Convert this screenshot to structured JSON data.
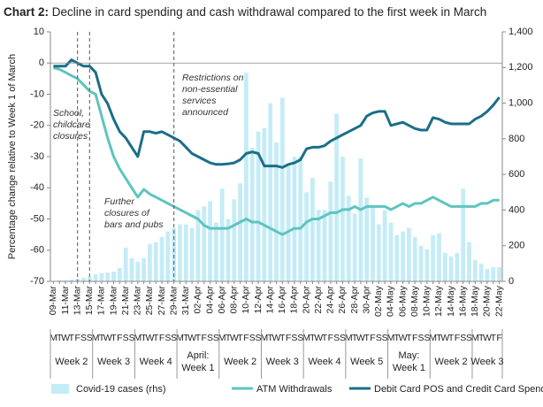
{
  "chart_data": {
    "type": "combo",
    "title_prefix": "Chart 2:",
    "title": "Decline in card spending and cash withdrawal compared to the first week in March",
    "ylabel": "Percentage change relative to Week 1 of March",
    "categories": [
      "09-Mar",
      null,
      "11-Mar",
      null,
      "13-Mar",
      null,
      "15-Mar",
      null,
      "17-Mar",
      null,
      "19-Mar",
      null,
      "21-Mar",
      null,
      "23-Mar",
      null,
      "25-Mar",
      null,
      "27-Mar",
      null,
      "29-Mar",
      null,
      "31-Mar",
      null,
      "02-Apr",
      null,
      "04-Apr",
      null,
      "06-Apr",
      null,
      "08-Apr",
      null,
      "10-Apr",
      null,
      "12-Apr",
      null,
      "14-Apr",
      null,
      "16-Apr",
      null,
      "18-Apr",
      null,
      "20-Apr",
      null,
      "22-Apr",
      null,
      "24-Apr",
      null,
      "26-Apr",
      null,
      "28-Apr",
      null,
      "30-Apr",
      null,
      "02-May",
      null,
      "04-May",
      null,
      "06-May",
      null,
      "08-May",
      null,
      "10-May",
      null,
      "12-May",
      null,
      "14-May",
      null,
      "16-May",
      null,
      "18-May",
      null,
      "20-May",
      null,
      "22-May"
    ],
    "weekdays": [
      "M",
      "T",
      "W",
      "T",
      "F",
      "S",
      "S",
      "M",
      "T",
      "W",
      "T",
      "F",
      "S",
      "S",
      "M",
      "T",
      "W",
      "T",
      "F",
      "S",
      "S",
      "M",
      "T",
      "W",
      "T",
      "F",
      "S",
      "S",
      "M",
      "T",
      "W",
      "T",
      "F",
      "S",
      "S",
      "M",
      "T",
      "W",
      "T",
      "F",
      "S",
      "S",
      "M",
      "T",
      "W",
      "T",
      "F",
      "S",
      "S",
      "M",
      "T",
      "W",
      "T",
      "F",
      "S",
      "S",
      "M",
      "T",
      "W",
      "T",
      "F",
      "S",
      "S",
      "M",
      "T",
      "W",
      "T",
      "F",
      "S",
      "S",
      "M",
      "T",
      "W",
      "T",
      "F"
    ],
    "week_groups": [
      [
        "Week 2"
      ],
      [
        "Week 3"
      ],
      [
        "Week 4"
      ],
      [
        "April:",
        "Week 1"
      ],
      [
        "Week 2"
      ],
      [
        "Week 3"
      ],
      [
        "Week 4"
      ],
      [
        "Week 5"
      ],
      [
        "May:",
        "Week 1"
      ],
      [
        "Week 2"
      ],
      [
        "Week 3"
      ]
    ],
    "ylim": [
      -70,
      10
    ],
    "yticks": [
      -70,
      -60,
      -50,
      -40,
      -30,
      -20,
      -10,
      0,
      10
    ],
    "y2lim": [
      0,
      1400
    ],
    "y2ticks": [
      0,
      200,
      400,
      600,
      800,
      {
        "value": 1000,
        "label": "1,000"
      },
      {
        "value": 1200,
        "label": "1,200"
      },
      {
        "value": 1400,
        "label": "1,400"
      }
    ],
    "series": [
      {
        "name": "Covid-19 cases (rhs)",
        "type": "bar",
        "axis": "y2",
        "color": "#c4ecf6",
        "values": [
          2,
          5,
          5,
          10,
          15,
          20,
          25,
          40,
          45,
          50,
          55,
          75,
          190,
          130,
          110,
          130,
          210,
          220,
          250,
          280,
          300,
          320,
          320,
          300,
          400,
          420,
          450,
          330,
          520,
          350,
          460,
          550,
          1170,
          750,
          840,
          860,
          1000,
          780,
          1030,
          650,
          700,
          700,
          500,
          580,
          400,
          400,
          560,
          940,
          700,
          480,
          380,
          690,
          470,
          420,
          320,
          400,
          330,
          260,
          280,
          300,
          250,
          200,
          180,
          260,
          270,
          160,
          140,
          160,
          520,
          220,
          120,
          100,
          70,
          80,
          80
        ]
      },
      {
        "name": "ATM Withdrawals",
        "type": "line",
        "color": "#5ec4bf",
        "values": [
          -1.5,
          -2,
          -3,
          -4,
          -5,
          -7,
          -9,
          -10,
          -17,
          -24,
          -30,
          -34,
          -37,
          -40,
          -43,
          -40.5,
          -42,
          -43,
          -44,
          -45,
          -46,
          -47,
          -48,
          -49,
          -50,
          -52,
          -53,
          -53,
          -53,
          -53,
          -52,
          -51,
          -50,
          -51,
          -51,
          -52,
          -53,
          -54,
          -55,
          -54,
          -53,
          -53,
          -51,
          -50,
          -50,
          -49,
          -48,
          -48,
          -47,
          -47,
          -46,
          -47,
          -46,
          -46,
          -46,
          -46,
          -47,
          -46,
          -45,
          -46,
          -45,
          -45,
          -44,
          -43,
          -44,
          -45,
          -46,
          -46,
          -46,
          -46,
          -46,
          -45,
          -45,
          -44,
          -44
        ]
      },
      {
        "name": "Debit Card POS and Credit Card Spending",
        "type": "line",
        "color": "#1b6e87",
        "values": [
          -1,
          -1,
          -1,
          1,
          0,
          -1,
          -1,
          -3,
          -10,
          -13,
          -18,
          -22,
          -24,
          -27,
          -30,
          -22,
          -22,
          -22.5,
          -22,
          -23,
          -24,
          -25,
          -27,
          -29,
          -30,
          -31,
          -32,
          -32.5,
          -32.5,
          -32.3,
          -32,
          -31,
          -29,
          -28.5,
          -29,
          -33,
          -33,
          -33,
          -33.5,
          -32.5,
          -32,
          -31,
          -27.5,
          -27,
          -27,
          -26.5,
          -25,
          -24,
          -23,
          -22,
          -21,
          -20,
          -17,
          -16,
          -15.5,
          -15.5,
          -20,
          -19.5,
          -19,
          -20,
          -21,
          -21.5,
          -21.5,
          -17.5,
          -18,
          -19,
          -19.5,
          -19.5,
          -19.5,
          -19.5,
          -18,
          -17,
          -15.5,
          -13.5,
          -11
        ]
      }
    ],
    "annotations": [
      {
        "x": "13-Mar",
        "text": [
          "School,",
          "childcare",
          "closures"
        ]
      },
      {
        "x": "15-Mar",
        "text": [
          "Further",
          "closures of",
          "bars and pubs"
        ]
      },
      {
        "x": "29-Mar",
        "text": [
          "Restrictions on",
          "non-essential",
          "services",
          "announced"
        ]
      }
    ]
  }
}
